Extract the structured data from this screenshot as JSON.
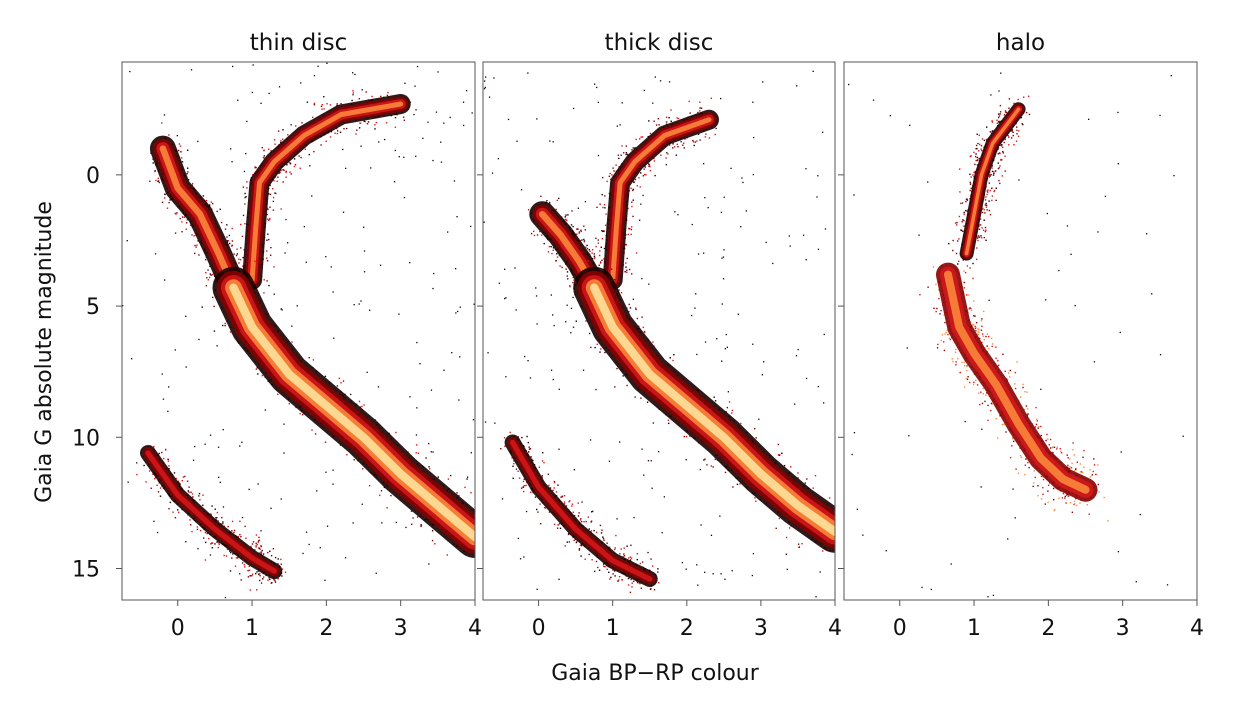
{
  "chart_data": {
    "type": "scatter",
    "xlabel": "Gaia BP−RP colour",
    "ylabel": "Gaia G absolute magnitude",
    "xlim": [
      -0.75,
      4.0
    ],
    "ylim": [
      16.2,
      -4.3
    ],
    "y_inverted": true,
    "xticks": [
      "0",
      "1",
      "2",
      "3",
      "4"
    ],
    "yticks": [
      "0",
      "5",
      "10",
      "15"
    ],
    "colormap": [
      "#1a0000",
      "#8b0000",
      "#d7191c",
      "#fd8d3c",
      "#ffe8a0"
    ],
    "panels": [
      {
        "title": "thin disc",
        "main_sequence": [
          [
            0.75,
            4.3
          ],
          [
            1.0,
            5.8
          ],
          [
            1.5,
            7.6
          ],
          [
            2.0,
            8.8
          ],
          [
            2.5,
            10.0
          ],
          [
            3.0,
            11.4
          ],
          [
            3.5,
            12.6
          ],
          [
            4.0,
            13.8
          ]
        ],
        "white_dwarfs": [
          [
            -0.4,
            10.6
          ],
          [
            0.0,
            12.2
          ],
          [
            0.5,
            13.5
          ],
          [
            1.0,
            14.6
          ],
          [
            1.3,
            15.1
          ]
        ],
        "giant_branch": [
          [
            1.0,
            4.0
          ],
          [
            1.05,
            2.0
          ],
          [
            1.1,
            0.3
          ],
          [
            1.3,
            -0.5
          ],
          [
            1.7,
            -1.5
          ],
          [
            2.2,
            -2.3
          ],
          [
            3.0,
            -2.7
          ]
        ],
        "upper_main_sequence": [
          [
            -0.2,
            -1.0
          ],
          [
            0.0,
            0.5
          ],
          [
            0.3,
            1.5
          ],
          [
            0.55,
            3.0
          ],
          [
            0.75,
            4.3
          ]
        ]
      },
      {
        "title": "thick disc",
        "main_sequence": [
          [
            0.75,
            4.3
          ],
          [
            1.0,
            5.8
          ],
          [
            1.5,
            7.6
          ],
          [
            2.0,
            8.8
          ],
          [
            2.5,
            10.0
          ],
          [
            3.0,
            11.4
          ],
          [
            3.5,
            12.6
          ],
          [
            4.0,
            13.6
          ]
        ],
        "white_dwarfs": [
          [
            -0.35,
            10.2
          ],
          [
            0.0,
            11.9
          ],
          [
            0.5,
            13.5
          ],
          [
            1.0,
            14.7
          ],
          [
            1.5,
            15.4
          ]
        ],
        "giant_branch": [
          [
            1.0,
            4.0
          ],
          [
            1.05,
            2.0
          ],
          [
            1.1,
            0.3
          ],
          [
            1.3,
            -0.5
          ],
          [
            1.7,
            -1.5
          ],
          [
            2.3,
            -2.1
          ]
        ],
        "upper_main_sequence": [
          [
            0.05,
            1.5
          ],
          [
            0.3,
            2.3
          ],
          [
            0.55,
            3.3
          ],
          [
            0.75,
            4.3
          ]
        ]
      },
      {
        "title": "halo",
        "main_sequence": [
          [
            0.65,
            3.8
          ],
          [
            0.8,
            5.8
          ],
          [
            1.0,
            6.8
          ],
          [
            1.3,
            8.0
          ],
          [
            1.6,
            9.5
          ],
          [
            1.9,
            10.8
          ],
          [
            2.2,
            11.6
          ],
          [
            2.5,
            12.0
          ]
        ],
        "white_dwarfs": [],
        "giant_branch": [
          [
            0.9,
            3.0
          ],
          [
            1.0,
            1.5
          ],
          [
            1.1,
            0.0
          ],
          [
            1.25,
            -1.2
          ],
          [
            1.6,
            -2.5
          ]
        ],
        "upper_main_sequence": []
      }
    ]
  }
}
